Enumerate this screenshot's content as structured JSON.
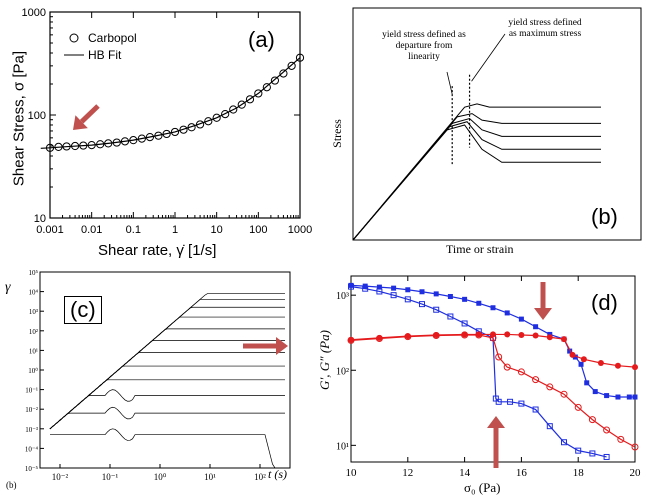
{
  "colors": {
    "arrow": "#c0504d",
    "red_series": "#e41a1c",
    "blue_series": "#1f2fe0",
    "ink": "#000000"
  },
  "chart_data": [
    {
      "panel": "(a)",
      "type": "scatter",
      "xlabel": "Shear rate, γ̇ [1/s]",
      "ylabel": "Shear Stress, σ [Pa]",
      "xscale": "log",
      "yscale": "log",
      "xlim": [
        0.001,
        1000
      ],
      "ylim": [
        10,
        1000
      ],
      "x_ticks": [
        "0.001",
        "0.01",
        "0.1",
        "1",
        "10",
        "100",
        "1000"
      ],
      "y_ticks": [
        "10",
        "100",
        "1000"
      ],
      "legend": [
        "Carbopol",
        "HB Fit"
      ],
      "legend_position": "top-left",
      "annotation": "(a)",
      "series": [
        {
          "name": "Carbopol",
          "marker": "open-circle",
          "x": [
            0.001,
            0.0016,
            0.0025,
            0.004,
            0.0063,
            0.01,
            0.016,
            0.025,
            0.04,
            0.063,
            0.1,
            0.16,
            0.25,
            0.4,
            0.63,
            1,
            1.6,
            2.5,
            4,
            6.3,
            10,
            16,
            25,
            40,
            63,
            100,
            160,
            250,
            400,
            630,
            1000
          ],
          "y": [
            48,
            49,
            49.5,
            50,
            50.5,
            51,
            52,
            53,
            54,
            55.5,
            57,
            59,
            61,
            63,
            65.5,
            68.5,
            72,
            76,
            81,
            87,
            94,
            102,
            113,
            126,
            142,
            162,
            186,
            216,
            253,
            300,
            360
          ]
        },
        {
          "name": "HB Fit",
          "marker": "line",
          "x": [
            0.0006,
            0.001,
            0.003,
            0.01,
            0.03,
            0.1,
            0.3,
            1,
            3,
            10,
            30,
            100,
            300,
            1000
          ],
          "y": [
            47.5,
            48,
            49.5,
            51,
            53.5,
            57,
            62,
            68.5,
            79,
            94,
            117,
            162,
            236,
            360
          ]
        }
      ]
    },
    {
      "panel": "(b)",
      "type": "line",
      "xlabel": "Time or strain",
      "ylabel": "Stress",
      "annotations": [
        "yield stress defined as departure from linearity",
        "yield stress defined as maximum stress",
        "(b)"
      ],
      "curves": [
        {
          "x": [
            0,
            0.45,
            0.5,
            0.55,
            1
          ],
          "y": [
            0,
            0.82,
            0.84,
            0.82,
            0.82
          ]
        },
        {
          "x": [
            0,
            0.42,
            0.48,
            0.52,
            0.6,
            1
          ],
          "y": [
            0,
            0.76,
            0.78,
            0.74,
            0.72,
            0.72
          ]
        },
        {
          "x": [
            0,
            0.4,
            0.47,
            0.52,
            0.6,
            1
          ],
          "y": [
            0,
            0.72,
            0.75,
            0.68,
            0.64,
            0.64
          ]
        },
        {
          "x": [
            0,
            0.39,
            0.46,
            0.52,
            0.6,
            1
          ],
          "y": [
            0,
            0.7,
            0.73,
            0.62,
            0.56,
            0.56
          ]
        },
        {
          "x": [
            0,
            0.38,
            0.45,
            0.52,
            0.6,
            1
          ],
          "y": [
            0,
            0.68,
            0.71,
            0.56,
            0.48,
            0.48
          ]
        }
      ]
    },
    {
      "panel": "(c)",
      "type": "line",
      "ylabel": "γ",
      "xlabel": "t (s)",
      "xscale": "log",
      "yscale": "log",
      "x_ticks": [
        "10⁻²",
        "10⁻¹",
        "10⁰",
        "10¹",
        "10²"
      ],
      "y_ticks": [
        "10⁻⁵",
        "10⁻⁴",
        "10⁻³",
        "10⁻²",
        "10⁻¹",
        "10⁰",
        "10¹",
        "10²",
        "10³",
        "10⁴",
        "10⁵"
      ],
      "annotations": [
        "(c)",
        "(b)"
      ],
      "plateau_levels_log10": [
        3.9,
        3.6,
        3.2,
        2.7,
        2.1,
        1.5,
        0.9,
        0.2,
        -0.5,
        -1.3,
        -2.2,
        -3.3
      ]
    },
    {
      "panel": "(d)",
      "type": "line",
      "xlabel": "σ₀ (Pa)",
      "ylabel": "G′, G″ (Pa)",
      "yscale": "log",
      "xlim": [
        10,
        20
      ],
      "x_ticks": [
        "10",
        "12",
        "14",
        "16",
        "18",
        "20"
      ],
      "y_ticks": [
        "10¹",
        "10²",
        "10³"
      ],
      "annotation": "(d)",
      "series": [
        {
          "color": "blue",
          "marker": "filled-square",
          "x": [
            10,
            10.5,
            11,
            11.5,
            12,
            12.5,
            13,
            13.5,
            14,
            14.5,
            15,
            15.5,
            16,
            16.5,
            17,
            17.5,
            17.7,
            17.9,
            18.1,
            18.3,
            18.6,
            19,
            19.4,
            19.8,
            20
          ],
          "y": [
            1350,
            1320,
            1280,
            1240,
            1180,
            1110,
            1040,
            960,
            880,
            780,
            680,
            580,
            480,
            380,
            300,
            260,
            180,
            150,
            120,
            68,
            52,
            46,
            44,
            44,
            44
          ]
        },
        {
          "color": "blue",
          "marker": "open-square",
          "x": [
            10,
            10.5,
            11,
            11.5,
            12,
            12.5,
            13,
            13.5,
            14,
            14.5,
            15,
            15.1,
            15.2,
            15.6,
            16,
            16.5,
            17,
            17.5,
            18,
            18.5,
            19
          ],
          "y": [
            1300,
            1220,
            1120,
            1000,
            880,
            760,
            640,
            520,
            420,
            330,
            270,
            42,
            38,
            38,
            36,
            30,
            18,
            11,
            8.5,
            7.8,
            7
          ]
        },
        {
          "color": "red",
          "marker": "filled-circle",
          "x": [
            10,
            11,
            12,
            13,
            14,
            14.5,
            15,
            15.5,
            16,
            16.5,
            17,
            17.5,
            17.8,
            18.2,
            18.8,
            19.4,
            20
          ],
          "y": [
            255,
            270,
            285,
            295,
            300,
            300,
            300,
            300,
            295,
            290,
            275,
            260,
            160,
            140,
            125,
            115,
            110
          ]
        },
        {
          "color": "red",
          "marker": "open-circle",
          "x": [
            10,
            11,
            12,
            13,
            14,
            14.5,
            15,
            15.2,
            15.5,
            16,
            16.5,
            17,
            17.5,
            18,
            18.5,
            19,
            19.5,
            20
          ],
          "y": [
            250,
            265,
            280,
            290,
            295,
            295,
            270,
            150,
            110,
            95,
            75,
            60,
            48,
            32,
            22,
            16,
            12,
            9.5
          ]
        }
      ]
    }
  ]
}
